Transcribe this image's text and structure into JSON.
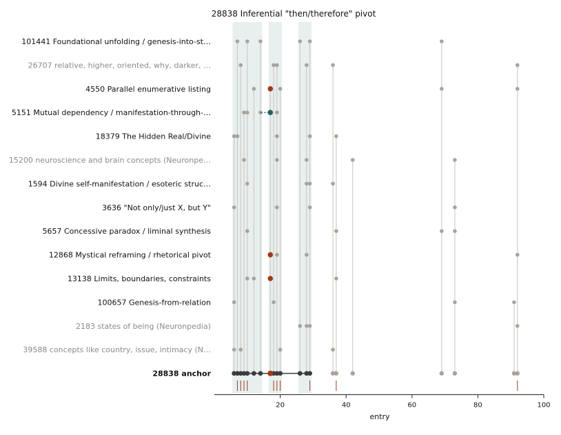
{
  "chart_data": {
    "type": "scatter",
    "title": "28838  Inferential \"then/therefore\" pivot",
    "xlabel": "entry",
    "ylabel": "",
    "xlim": [
      0,
      100
    ],
    "xticks": [
      20,
      40,
      60,
      80,
      100
    ],
    "colors": {
      "point": "#a7a39b",
      "line": "#c8c4bc",
      "anchor": "#3b3b3b",
      "highlight": "#9c3a16",
      "teal": "#1f5e63",
      "band": "#e8efef",
      "muted_label": "#8a8a8a",
      "label": "#111111"
    },
    "bands": [
      [
        5.5,
        14.5
      ],
      [
        16.5,
        20.5
      ],
      [
        25.5,
        29.5
      ]
    ],
    "rows": [
      {
        "label": "101441  Foundational unfolding / genesis-into-st…",
        "muted": false,
        "points": [
          7,
          10,
          14,
          26,
          29,
          69
        ]
      },
      {
        "label": "26707  relative, higher, oriented, why, darker, …",
        "muted": true,
        "points": [
          8,
          18,
          19,
          28,
          36,
          92
        ]
      },
      {
        "label": "4550  Parallel enumerative listing",
        "muted": false,
        "points": [
          12,
          20,
          69,
          92
        ],
        "highlight": [
          17
        ]
      },
      {
        "label": "5151  Mutual dependency / manifestation-through-…",
        "muted": false,
        "points": [
          9,
          10,
          14,
          19
        ],
        "teal": [
          17
        ]
      },
      {
        "label": "18379  The Hidden Real/Divine",
        "muted": false,
        "points": [
          6,
          7,
          19,
          29,
          37
        ]
      },
      {
        "label": "15200  neuroscience and brain concepts (Neuronpe…",
        "muted": true,
        "points": [
          9,
          19,
          28,
          42,
          73
        ]
      },
      {
        "label": "1594  Divine self-manifestation / esoteric struc…",
        "muted": false,
        "points": [
          10,
          28,
          29,
          36
        ]
      },
      {
        "label": "3636  \"Not only/just X, but Y\"",
        "muted": false,
        "points": [
          6,
          19,
          29,
          73
        ]
      },
      {
        "label": "5657  Concessive paradox / liminal synthesis",
        "muted": false,
        "points": [
          10,
          37,
          69,
          73
        ]
      },
      {
        "label": "12868  Mystical reframing / rhetorical pivot",
        "muted": false,
        "points": [
          19,
          28,
          92
        ],
        "highlight": [
          17
        ]
      },
      {
        "label": "13138  Limits, boundaries, constraints",
        "muted": false,
        "points": [
          10,
          12,
          37
        ],
        "highlight": [
          17
        ]
      },
      {
        "label": "100657  Genesis-from-relation",
        "muted": false,
        "points": [
          6,
          18,
          73,
          91
        ]
      },
      {
        "label": "2183  states of being (Neuronpedia)",
        "muted": true,
        "points": [
          26,
          28,
          29,
          92
        ]
      },
      {
        "label": "39588  concepts like country, issue, intimacy (N…",
        "muted": true,
        "points": [
          6,
          8,
          20,
          36
        ]
      }
    ],
    "anchor": {
      "label": "28838  anchor",
      "dark_points": [
        6,
        7,
        8,
        9,
        10,
        12,
        14,
        18,
        19,
        20,
        26,
        28,
        29
      ],
      "light_points": [
        36,
        37,
        42,
        69,
        73,
        91,
        92
      ],
      "highlight": [
        17
      ]
    },
    "rug": [
      7,
      8,
      9,
      10,
      18,
      19,
      20,
      29,
      37,
      92
    ]
  }
}
